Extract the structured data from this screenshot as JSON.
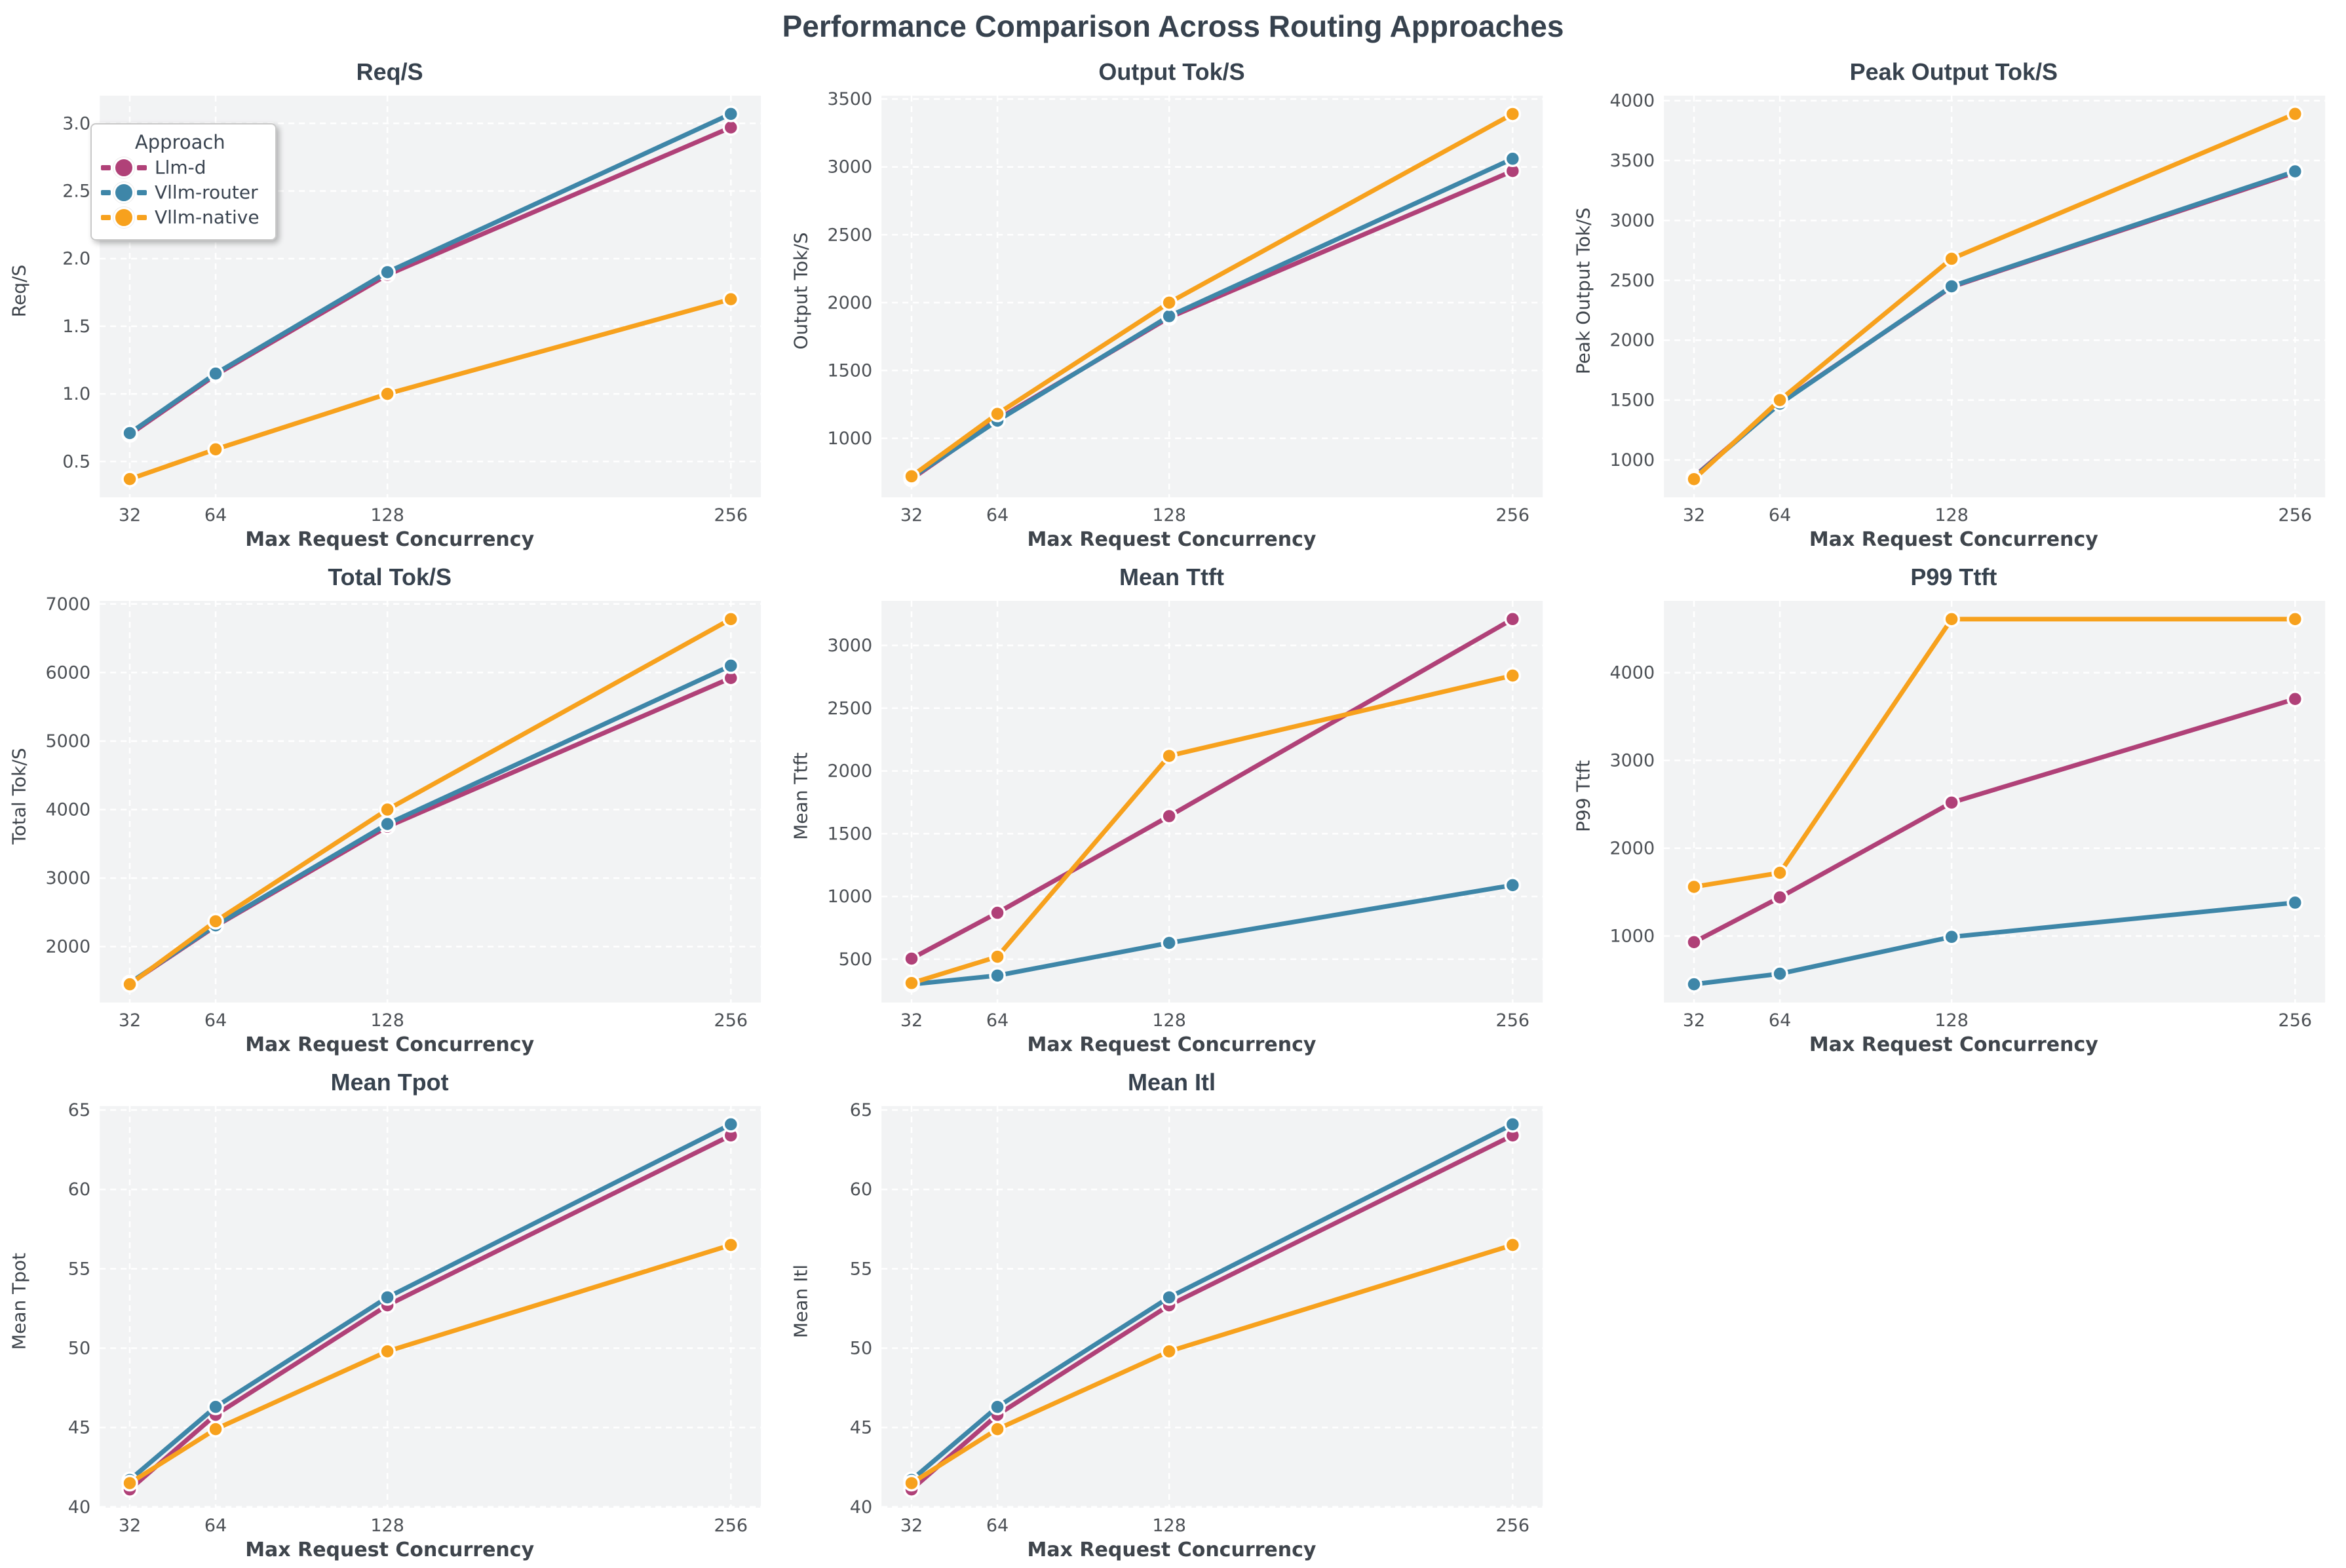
{
  "figure": {
    "title": "Performance Comparison Across Routing Approaches"
  },
  "style": {
    "panel_bg": "#f2f3f4",
    "grid_color": "#ffffff",
    "accent_dark": "#37424e"
  },
  "legend": {
    "title": "Approach",
    "entries": [
      {
        "label": "Llm-d",
        "color": "#b04178"
      },
      {
        "label": "Vllm-router",
        "color": "#3e86a8"
      },
      {
        "label": "Vllm-native",
        "color": "#f7a11d"
      }
    ]
  },
  "chart_data": [
    {
      "type": "line",
      "title": "Req/S",
      "xlabel": "Max Request Concurrency",
      "ylabel": "Req/S",
      "x": [
        32,
        64,
        128,
        256
      ],
      "xtick_labels": [
        "32",
        "64",
        "128",
        "256"
      ],
      "xlim": [
        20.8,
        267.2
      ],
      "ylim": [
        0.235,
        3.205
      ],
      "yticks": [
        0.5,
        1.0,
        1.5,
        2.0,
        2.5,
        3.0
      ],
      "ytick_labels": [
        "0.5",
        "1.0",
        "1.5",
        "2.0",
        "2.5",
        "3.0"
      ],
      "grid": true,
      "legend_position": "upper left",
      "series": [
        {
          "name": "Llm-d",
          "color": "#b04178",
          "values": [
            0.7,
            1.14,
            1.88,
            2.97
          ]
        },
        {
          "name": "Vllm-router",
          "color": "#3e86a8",
          "values": [
            0.71,
            1.15,
            1.9,
            3.07
          ]
        },
        {
          "name": "Vllm-native",
          "color": "#f7a11d",
          "values": [
            0.37,
            0.59,
            1.0,
            1.7
          ]
        }
      ]
    },
    {
      "type": "line",
      "title": "Output Tok/S",
      "xlabel": "Max Request Concurrency",
      "ylabel": "Output Tok/S",
      "x": [
        32,
        64,
        128,
        256
      ],
      "xtick_labels": [
        "32",
        "64",
        "128",
        "256"
      ],
      "xlim": [
        20.8,
        267.2
      ],
      "ylim": [
        565,
        3525
      ],
      "yticks": [
        1000,
        1500,
        2000,
        2500,
        3000,
        3500
      ],
      "ytick_labels": [
        "1000",
        "1500",
        "2000",
        "2500",
        "3000",
        "3500"
      ],
      "grid": true,
      "series": [
        {
          "name": "Llm-d",
          "color": "#b04178",
          "values": [
            700,
            1140,
            1890,
            2970
          ]
        },
        {
          "name": "Vllm-router",
          "color": "#3e86a8",
          "values": [
            710,
            1130,
            1900,
            3060
          ]
        },
        {
          "name": "Vllm-native",
          "color": "#f7a11d",
          "values": [
            720,
            1180,
            2000,
            3390
          ]
        }
      ]
    },
    {
      "type": "line",
      "title": "Peak Output Tok/S",
      "xlabel": "Max Request Concurrency",
      "ylabel": "Peak Output Tok/S",
      "x": [
        32,
        64,
        128,
        256
      ],
      "xtick_labels": [
        "32",
        "64",
        "128",
        "256"
      ],
      "xlim": [
        20.8,
        267.2
      ],
      "ylim": [
        688,
        4042
      ],
      "yticks": [
        1000,
        1500,
        2000,
        2500,
        3000,
        3500,
        4000
      ],
      "ytick_labels": [
        "1000",
        "1500",
        "2000",
        "2500",
        "3000",
        "3500",
        "4000"
      ],
      "grid": true,
      "series": [
        {
          "name": "Llm-d",
          "color": "#b04178",
          "values": [
            860,
            1475,
            2445,
            3400
          ]
        },
        {
          "name": "Vllm-router",
          "color": "#3e86a8",
          "values": [
            855,
            1470,
            2450,
            3410
          ]
        },
        {
          "name": "Vllm-native",
          "color": "#f7a11d",
          "values": [
            840,
            1500,
            2680,
            3890
          ]
        }
      ]
    },
    {
      "type": "line",
      "title": "Total Tok/S",
      "xlabel": "Max Request Concurrency",
      "ylabel": "Total Tok/S",
      "x": [
        32,
        64,
        128,
        256
      ],
      "xtick_labels": [
        "32",
        "64",
        "128",
        "256"
      ],
      "xlim": [
        20.8,
        267.2
      ],
      "ylim": [
        1184,
        7046
      ],
      "yticks": [
        2000,
        3000,
        4000,
        5000,
        6000,
        7000
      ],
      "ytick_labels": [
        "2000",
        "3000",
        "4000",
        "5000",
        "6000",
        "7000"
      ],
      "grid": true,
      "series": [
        {
          "name": "Llm-d",
          "color": "#b04178",
          "values": [
            1460,
            2300,
            3750,
            5920
          ]
        },
        {
          "name": "Vllm-router",
          "color": "#3e86a8",
          "values": [
            1470,
            2310,
            3790,
            6100
          ]
        },
        {
          "name": "Vllm-native",
          "color": "#f7a11d",
          "values": [
            1450,
            2370,
            4000,
            6780
          ]
        }
      ]
    },
    {
      "type": "line",
      "title": "Mean Ttft",
      "xlabel": "Max Request Concurrency",
      "ylabel": "Mean Ttft",
      "x": [
        32,
        64,
        128,
        256
      ],
      "xtick_labels": [
        "32",
        "64",
        "128",
        "256"
      ],
      "xlim": [
        20.8,
        267.2
      ],
      "ylim": [
        155,
        3355
      ],
      "yticks": [
        500,
        1000,
        1500,
        2000,
        2500,
        3000
      ],
      "ytick_labels": [
        "500",
        "1000",
        "1500",
        "2000",
        "2500",
        "3000"
      ],
      "grid": true,
      "series": [
        {
          "name": "Llm-d",
          "color": "#b04178",
          "values": [
            505,
            870,
            1640,
            3210
          ]
        },
        {
          "name": "Vllm-router",
          "color": "#3e86a8",
          "values": [
            300,
            370,
            630,
            1090
          ]
        },
        {
          "name": "Vllm-native",
          "color": "#f7a11d",
          "values": [
            310,
            520,
            2120,
            2760
          ]
        }
      ]
    },
    {
      "type": "line",
      "title": "P99 Ttft",
      "xlabel": "Max Request Concurrency",
      "ylabel": "P99 Ttft",
      "x": [
        32,
        64,
        128,
        256
      ],
      "xtick_labels": [
        "32",
        "64",
        "128",
        "256"
      ],
      "xlim": [
        20.8,
        267.2
      ],
      "ylim": [
        242,
        4818
      ],
      "yticks": [
        1000,
        2000,
        3000,
        4000
      ],
      "ytick_labels": [
        "1000",
        "2000",
        "3000",
        "4000"
      ],
      "grid": true,
      "series": [
        {
          "name": "Llm-d",
          "color": "#b04178",
          "values": [
            930,
            1440,
            2520,
            3700
          ]
        },
        {
          "name": "Vllm-router",
          "color": "#3e86a8",
          "values": [
            450,
            570,
            990,
            1380
          ]
        },
        {
          "name": "Vllm-native",
          "color": "#f7a11d",
          "values": [
            1560,
            1720,
            4610,
            4610
          ]
        }
      ]
    },
    {
      "type": "line",
      "title": "Mean Tpot",
      "xlabel": "Max Request Concurrency",
      "ylabel": "Mean Tpot",
      "x": [
        32,
        64,
        128,
        256
      ],
      "xtick_labels": [
        "32",
        "64",
        "128",
        "256"
      ],
      "xlim": [
        20.8,
        267.2
      ],
      "ylim": [
        39.95,
        65.25
      ],
      "yticks": [
        40,
        45,
        50,
        55,
        60,
        65
      ],
      "ytick_labels": [
        "40",
        "45",
        "50",
        "55",
        "60",
        "65"
      ],
      "grid": true,
      "series": [
        {
          "name": "Llm-d",
          "color": "#b04178",
          "values": [
            41.1,
            45.8,
            52.7,
            63.4
          ]
        },
        {
          "name": "Vllm-router",
          "color": "#3e86a8",
          "values": [
            41.7,
            46.3,
            53.2,
            64.1
          ]
        },
        {
          "name": "Vllm-native",
          "color": "#f7a11d",
          "values": [
            41.5,
            44.9,
            49.8,
            56.5
          ]
        }
      ]
    },
    {
      "type": "line",
      "title": "Mean Itl",
      "xlabel": "Max Request Concurrency",
      "ylabel": "Mean Itl",
      "x": [
        32,
        64,
        128,
        256
      ],
      "xtick_labels": [
        "32",
        "64",
        "128",
        "256"
      ],
      "xlim": [
        20.8,
        267.2
      ],
      "ylim": [
        39.95,
        65.25
      ],
      "yticks": [
        40,
        45,
        50,
        55,
        60,
        65
      ],
      "ytick_labels": [
        "40",
        "45",
        "50",
        "55",
        "60",
        "65"
      ],
      "grid": true,
      "series": [
        {
          "name": "Llm-d",
          "color": "#b04178",
          "values": [
            41.1,
            45.8,
            52.7,
            63.4
          ]
        },
        {
          "name": "Vllm-router",
          "color": "#3e86a8",
          "values": [
            41.7,
            46.3,
            53.2,
            64.1
          ]
        },
        {
          "name": "Vllm-native",
          "color": "#f7a11d",
          "values": [
            41.5,
            44.9,
            49.8,
            56.5
          ]
        }
      ]
    }
  ]
}
